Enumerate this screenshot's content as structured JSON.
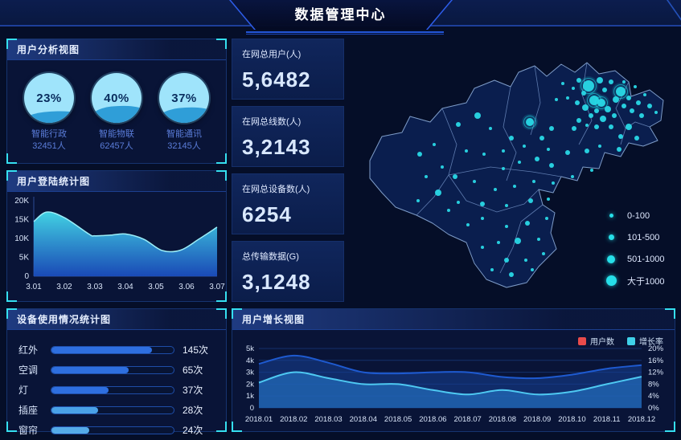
{
  "header": {
    "title": "数据管理中心"
  },
  "panels": {
    "user_analysis": {
      "title": "用户分析视图",
      "gauges": [
        {
          "percent": "23%",
          "label": "智能行政",
          "count": "32451人"
        },
        {
          "percent": "40%",
          "label": "智能物联",
          "count": "62457人"
        },
        {
          "percent": "37%",
          "label": "智能通讯",
          "count": "32145人"
        }
      ]
    },
    "login_stats": {
      "title": "用户登陆统计图"
    },
    "device_usage": {
      "title": "设备使用情况统计图",
      "rows": [
        {
          "label": "红外",
          "value": "145次"
        },
        {
          "label": "空调",
          "value": "65次"
        },
        {
          "label": "灯",
          "value": "37次"
        },
        {
          "label": "插座",
          "value": "28次"
        },
        {
          "label": "窗帘",
          "value": "24次"
        }
      ]
    },
    "user_growth": {
      "title": "用户增长视图",
      "legend": [
        {
          "name": "用户数",
          "color": "#e84b4b"
        },
        {
          "name": "增长率",
          "color": "#3fd0e8"
        }
      ]
    }
  },
  "stats": [
    {
      "label": "在网总用户(人)",
      "value": "5,6482"
    },
    {
      "label": "在网总线数(人)",
      "value": "3,2143"
    },
    {
      "label": "在网总设备数(人)",
      "value": "6254"
    },
    {
      "label": "总传输数据(G)",
      "value": "3,1248"
    }
  ],
  "map_legend": [
    "0-100",
    "101-500",
    "501-1000",
    "大于1000"
  ],
  "colors": {
    "background": "#050e28",
    "accent_cyan": "#35dff0",
    "bar_blue": "#2e6fe0",
    "bar_light_blue": "#55abe8",
    "area_top": "#45dcec",
    "area_bottom": "#1c50c4",
    "users_line": "#1e5ad0",
    "growth_line": "#4ec9f2",
    "legend_red": "#e84b4b",
    "map_dot": "#29d8e6"
  },
  "chart_data": [
    {
      "type": "pie",
      "subtype": "liquid-gauge",
      "title": "用户分析视图",
      "items": [
        {
          "label": "智能行政",
          "percent": 23,
          "count": 32451
        },
        {
          "label": "智能物联",
          "percent": 40,
          "count": 62457
        },
        {
          "label": "智能通讯",
          "percent": 37,
          "count": 32145
        }
      ]
    },
    {
      "type": "area",
      "title": "用户登陆统计图",
      "x": [
        "3.01",
        "3.02",
        "3.03",
        "3.04",
        "3.05",
        "3.06",
        "3.07"
      ],
      "values": [
        14500,
        15500,
        10600,
        11200,
        8600,
        6900,
        13000
      ],
      "ylim": [
        0,
        20000
      ],
      "yticks": [
        "0",
        "5K",
        "10K",
        "15K",
        "20K"
      ],
      "shape": [
        [
          0,
          14.5
        ],
        [
          0.07,
          17.0
        ],
        [
          0.167,
          15.5
        ],
        [
          0.3,
          11.2
        ],
        [
          0.333,
          10.7
        ],
        [
          0.42,
          10.9
        ],
        [
          0.5,
          11.2
        ],
        [
          0.6,
          9.8
        ],
        [
          0.7,
          6.8
        ],
        [
          0.8,
          6.9
        ],
        [
          0.9,
          9.8
        ],
        [
          1.0,
          13.0
        ]
      ],
      "grid": false,
      "legend": "none"
    },
    {
      "type": "bar",
      "subtype": "horizontal",
      "title": "设备使用情况统计图",
      "categories": [
        "红外",
        "空调",
        "灯",
        "插座",
        "窗帘"
      ],
      "values": [
        145,
        65,
        37,
        28,
        24
      ],
      "unit": "次",
      "bar_pct": [
        82,
        63,
        47,
        38,
        31
      ],
      "bar_colors": [
        "#2e6fe0",
        "#2e6fe0",
        "#2e6fe0",
        "#4aa2e8",
        "#55abe8"
      ]
    },
    {
      "type": "area",
      "subtype": "dual-axis",
      "title": "用户增长视图",
      "x": [
        "2018.01",
        "2018.02",
        "2018.03",
        "2018.04",
        "2018.05",
        "2018.06",
        "2018.07",
        "2018.08",
        "2018.09",
        "2018.10",
        "2018.11",
        "2018.12"
      ],
      "series": [
        {
          "name": "用户数",
          "axis": "left",
          "values": [
            3700,
            4400,
            3800,
            3000,
            2900,
            3000,
            3000,
            2600,
            2500,
            2800,
            3300,
            3600
          ]
        },
        {
          "name": "增长率",
          "axis": "right",
          "values": [
            8.5,
            12,
            10,
            8,
            8,
            6,
            4.5,
            6,
            4.5,
            5.5,
            8,
            10.5
          ]
        }
      ],
      "ylim_left": [
        0,
        5000
      ],
      "yticks_left": [
        "0",
        "1k",
        "2k",
        "3k",
        "4k",
        "5k"
      ],
      "ylim_right": [
        0,
        20
      ],
      "yticks_right": [
        "0%",
        "4%",
        "8%",
        "12%",
        "16%",
        "20%"
      ],
      "legend_position": "top-right",
      "grid": true
    },
    {
      "type": "scatter",
      "subtype": "bubble-map",
      "title": "区域分布地图",
      "legend": [
        "0-100",
        "101-500",
        "501-1000",
        "大于1000"
      ]
    }
  ]
}
